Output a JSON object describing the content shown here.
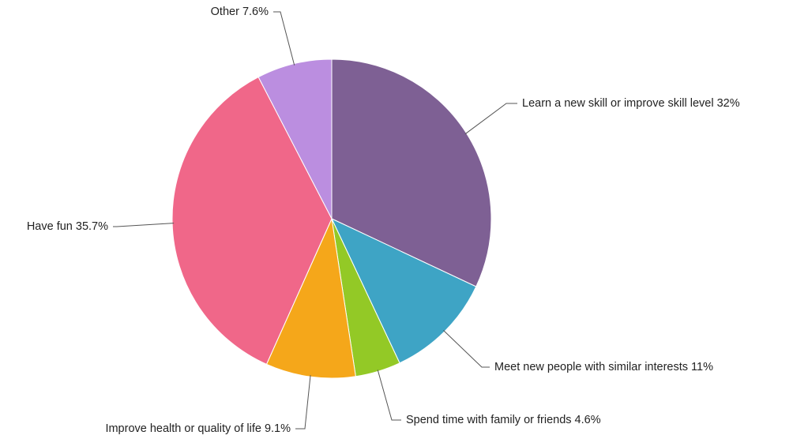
{
  "chart_data": {
    "type": "pie",
    "slices": [
      {
        "label": "Learn a new skill or improve skill level",
        "value": 32,
        "display": "Learn a new skill or improve skill level 32%",
        "color": "#7e6094"
      },
      {
        "label": "Meet new people with similar interests",
        "value": 11,
        "display": "Meet new people with similar interests 11%",
        "color": "#3ea4c5"
      },
      {
        "label": "Spend time with family or friends",
        "value": 4.6,
        "display": "Spend time with family or friends 4.6%",
        "color": "#93c926"
      },
      {
        "label": "Improve health or quality of life",
        "value": 9.1,
        "display": "Improve health or quality of life 9.1%",
        "color": "#f5a71a"
      },
      {
        "label": "Have fun",
        "value": 35.7,
        "display": "Have fun 35.7%",
        "color": "#f06789"
      },
      {
        "label": "Other",
        "value": 7.6,
        "display": "Other 7.6%",
        "color": "#bb8ee0"
      }
    ],
    "legend": "none",
    "start_angle": "top, clockwise"
  }
}
